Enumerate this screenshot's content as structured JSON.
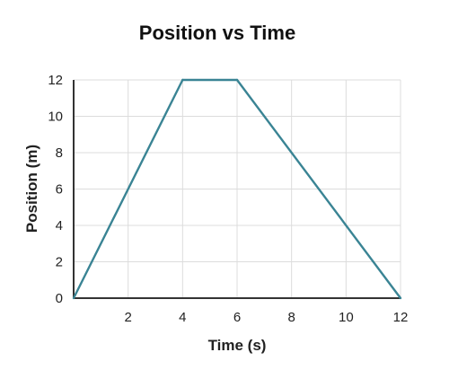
{
  "chart_data": {
    "type": "line",
    "title": "Position vs Time",
    "xlabel": "Time (s)",
    "ylabel": "Position (m)",
    "xlim": [
      0,
      12
    ],
    "ylim": [
      0,
      12
    ],
    "x_ticks": [
      "2",
      "4",
      "6",
      "8",
      "10",
      "12"
    ],
    "y_ticks": [
      "0",
      "2",
      "4",
      "6",
      "8",
      "10",
      "12"
    ],
    "grid": true,
    "series": [
      {
        "x": [
          0,
          4,
          6,
          12
        ],
        "y": [
          0,
          12,
          12,
          0
        ],
        "color": "#3a8494"
      }
    ]
  }
}
